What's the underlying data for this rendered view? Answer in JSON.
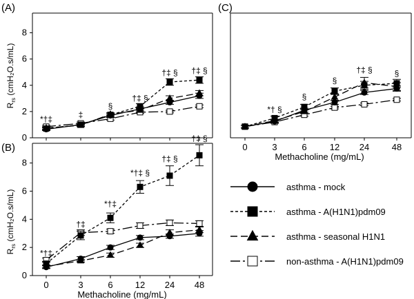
{
  "panels_text": {
    "a": "(A)",
    "b": "(B)",
    "c": "(C)"
  },
  "chart_data": [
    {
      "id": "A",
      "type": "line",
      "panel_label": "(A)",
      "categories": [
        "0",
        "3",
        "6",
        "12",
        "24",
        "48"
      ],
      "ylim": [
        0,
        9.5
      ],
      "yticks": [
        0,
        2,
        4,
        6,
        8
      ],
      "ylabel": "R",
      "ylabel_sub": "rs",
      "ylabel_units": " (cmH₂O.s/mL)",
      "xlabel": "",
      "series": [
        {
          "key": "mock",
          "values": [
            0.65,
            1.0,
            1.7,
            2.2,
            2.7,
            3.2
          ],
          "err": [
            0.1,
            0.1,
            0.1,
            0.15,
            0.15,
            0.2
          ]
        },
        {
          "key": "h1n1pdm",
          "values": [
            0.7,
            1.0,
            1.75,
            2.4,
            4.25,
            4.4
          ],
          "err": [
            0.1,
            0.1,
            0.15,
            0.2,
            0.25,
            0.25
          ]
        },
        {
          "key": "seasonal",
          "values": [
            0.75,
            0.95,
            1.8,
            2.1,
            3.0,
            3.4
          ],
          "err": [
            0.1,
            0.1,
            0.1,
            0.15,
            0.2,
            0.2
          ]
        },
        {
          "key": "nonasthma",
          "values": [
            0.85,
            1.1,
            1.45,
            1.95,
            2.0,
            2.4
          ],
          "err": [
            0.1,
            0.1,
            0.1,
            0.1,
            0.1,
            0.1
          ]
        }
      ],
      "annotations": [
        {
          "x": 0,
          "y": 1.2,
          "text": "*†‡"
        },
        {
          "x": 1,
          "y": 1.55,
          "text": "‡"
        },
        {
          "x": 2,
          "y": 2.2,
          "text": "§"
        },
        {
          "x": 3,
          "y": 2.8,
          "text": "†‡ §"
        },
        {
          "x": 4,
          "y": 4.75,
          "text": "†‡ §"
        },
        {
          "x": 5,
          "y": 4.9,
          "text": "†‡ §"
        }
      ]
    },
    {
      "id": "B",
      "type": "line",
      "panel_label": "(B)",
      "categories": [
        "0",
        "3",
        "6",
        "12",
        "24",
        "48"
      ],
      "ylim": [
        0,
        9.4
      ],
      "yticks": [
        0,
        2,
        4,
        6,
        8
      ],
      "ylabel": "R",
      "ylabel_sub": "rs",
      "ylabel_units": " (cmH₂O.s/mL)",
      "xlabel": "Methacholine (mg/mL)",
      "series": [
        {
          "key": "mock",
          "values": [
            0.6,
            1.2,
            2.0,
            2.7,
            2.8,
            3.0
          ],
          "err": [
            0.1,
            0.15,
            0.15,
            0.15,
            0.15,
            0.2
          ]
        },
        {
          "key": "h1n1pdm",
          "values": [
            0.85,
            2.85,
            4.1,
            6.3,
            7.1,
            8.55
          ],
          "err": [
            0.15,
            0.3,
            0.35,
            0.45,
            0.7,
            0.75
          ]
        },
        {
          "key": "seasonal",
          "values": [
            0.65,
            1.05,
            1.45,
            2.15,
            3.05,
            3.25
          ],
          "err": [
            0.1,
            0.1,
            0.15,
            0.15,
            0.2,
            0.2
          ]
        },
        {
          "key": "nonasthma",
          "values": [
            1.1,
            3.05,
            3.15,
            3.55,
            3.75,
            3.7
          ],
          "err": [
            0.15,
            0.2,
            0.15,
            0.2,
            0.2,
            0.2
          ]
        }
      ],
      "annotations": [
        {
          "x": 0,
          "y": 1.4,
          "text": "*†‡"
        },
        {
          "x": 1,
          "y": 3.45,
          "text": "†‡"
        },
        {
          "x": 2,
          "y": 4.9,
          "text": "*†‡"
        },
        {
          "x": 3,
          "y": 7.1,
          "text": "*†‡ §"
        },
        {
          "x": 4,
          "y": 8.1,
          "text": "†‡ §"
        },
        {
          "x": 5,
          "y": 9.55,
          "text": "†‡ §"
        }
      ]
    },
    {
      "id": "C",
      "type": "line",
      "panel_label": "(C)",
      "categories": [
        "0",
        "3",
        "6",
        "12",
        "24",
        "48"
      ],
      "ylim": [
        0,
        9.5
      ],
      "yticks": [],
      "ylabel": "",
      "xlabel": "Methacholine (mg/mL)",
      "series": [
        {
          "key": "mock",
          "values": [
            0.85,
            1.25,
            2.1,
            2.7,
            3.45,
            3.75
          ],
          "err": [
            0.1,
            0.1,
            0.15,
            0.15,
            0.15,
            0.2
          ]
        },
        {
          "key": "h1n1pdm",
          "values": [
            0.85,
            1.5,
            2.35,
            3.55,
            4.0,
            4.15
          ],
          "err": [
            0.1,
            0.15,
            0.2,
            0.25,
            0.3,
            0.3
          ]
        },
        {
          "key": "seasonal",
          "values": [
            0.85,
            1.3,
            2.0,
            3.1,
            4.2,
            3.9
          ],
          "err": [
            0.1,
            0.1,
            0.15,
            0.25,
            0.4,
            0.3
          ]
        },
        {
          "key": "nonasthma",
          "values": [
            0.85,
            1.2,
            1.75,
            2.3,
            2.55,
            2.9
          ],
          "err": [
            0.1,
            0.1,
            0.1,
            0.1,
            0.1,
            0.1
          ]
        }
      ],
      "annotations": [
        {
          "x": 1,
          "y": 1.95,
          "text": "*† §"
        },
        {
          "x": 2,
          "y": 2.9,
          "text": "§"
        },
        {
          "x": 3,
          "y": 4.15,
          "text": "§"
        },
        {
          "x": 4,
          "y": 4.95,
          "text": "†‡ §"
        },
        {
          "x": 5,
          "y": 4.7,
          "text": "§"
        }
      ]
    }
  ],
  "legend": [
    {
      "key": "mock",
      "label": "asthma - mock",
      "marker": "circle",
      "filled": true,
      "dash": ""
    },
    {
      "key": "h1n1pdm",
      "label": "asthma - A(H1N1)pdm09",
      "marker": "square",
      "filled": true,
      "dash": "4,3"
    },
    {
      "key": "seasonal",
      "label": "asthma -  seasonal H1N1",
      "marker": "triangle",
      "filled": true,
      "dash": "10,5"
    },
    {
      "key": "nonasthma",
      "label": "non-asthma - A(H1N1)pdm09",
      "marker": "square",
      "filled": false,
      "dash": "14,4,3,4"
    }
  ]
}
